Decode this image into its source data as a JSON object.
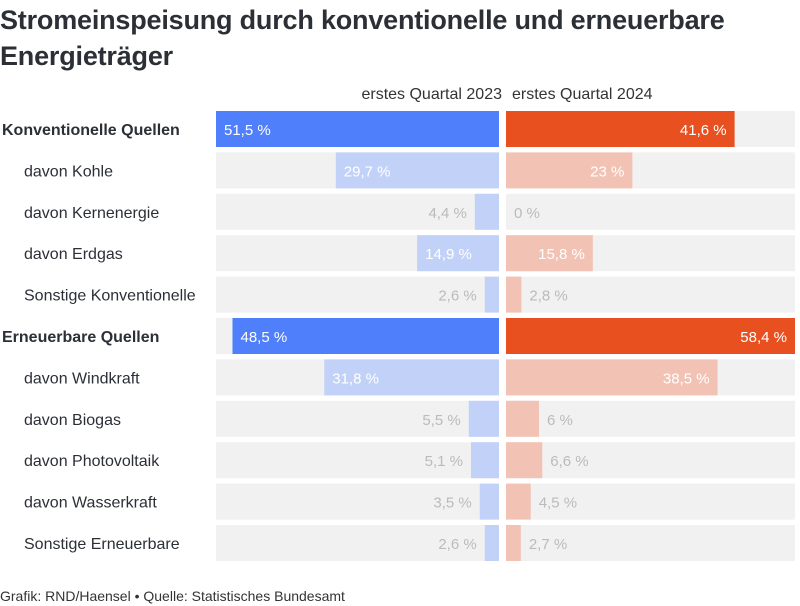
{
  "title": "Stromeinspeisung durch konventionelle und erneuerbare Energieträger",
  "footer": "Grafik: RND/Haensel • Quelle: Statistisches Bundesamt",
  "colors": {
    "left_main": "#4f7ffa",
    "left_sub": "#c2d1f7",
    "right_main": "#e9501f",
    "right_sub": "#f2c3b5",
    "track": "#f1f1f1",
    "label_light": "#bbbbbb"
  },
  "chart_data": {
    "type": "bar",
    "orientation": "horizontal-back-to-back",
    "title": "Stromeinspeisung durch konventionelle und erneuerbare Energieträger",
    "series_labels": [
      "erstes Quartal 2023",
      "erstes Quartal 2024"
    ],
    "xlim": [
      0,
      60
    ],
    "rows": [
      {
        "label": "Konventionelle Quellen",
        "bold": true,
        "v2023": 51.5,
        "v2024": 41.6,
        "t2023": "51,5 %",
        "t2024": "41,6 %"
      },
      {
        "label": "davon Kohle",
        "bold": false,
        "v2023": 29.7,
        "v2024": 23,
        "t2023": "29,7 %",
        "t2024": "23 %"
      },
      {
        "label": "davon Kernenergie",
        "bold": false,
        "v2023": 4.4,
        "v2024": 0,
        "t2023": "4,4 %",
        "t2024": "0 %"
      },
      {
        "label": "davon Erdgas",
        "bold": false,
        "v2023": 14.9,
        "v2024": 15.8,
        "t2023": "14,9 %",
        "t2024": "15,8 %"
      },
      {
        "label": "Sonstige Konventionelle",
        "bold": false,
        "v2023": 2.6,
        "v2024": 2.8,
        "t2023": "2,6 %",
        "t2024": "2,8 %"
      },
      {
        "label": "Erneuerbare Quellen",
        "bold": true,
        "v2023": 48.5,
        "v2024": 58.4,
        "t2023": "48,5 %",
        "t2024": "58,4 %"
      },
      {
        "label": "davon Windkraft",
        "bold": false,
        "v2023": 31.8,
        "v2024": 38.5,
        "t2023": "31,8 %",
        "t2024": "38,5 %"
      },
      {
        "label": "davon Biogas",
        "bold": false,
        "v2023": 5.5,
        "v2024": 6,
        "t2023": "5,5 %",
        "t2024": "6 %"
      },
      {
        "label": "davon Photovoltaik",
        "bold": false,
        "v2023": 5.1,
        "v2024": 6.6,
        "t2023": "5,1 %",
        "t2024": "6,6 %"
      },
      {
        "label": "davon Wasserkraft",
        "bold": false,
        "v2023": 3.5,
        "v2024": 4.5,
        "t2023": "3,5 %",
        "t2024": "4,5 %"
      },
      {
        "label": "Sonstige Erneuerbare",
        "bold": false,
        "v2023": 2.6,
        "v2024": 2.7,
        "t2023": "2,6 %",
        "t2024": "2,7 %"
      }
    ]
  }
}
